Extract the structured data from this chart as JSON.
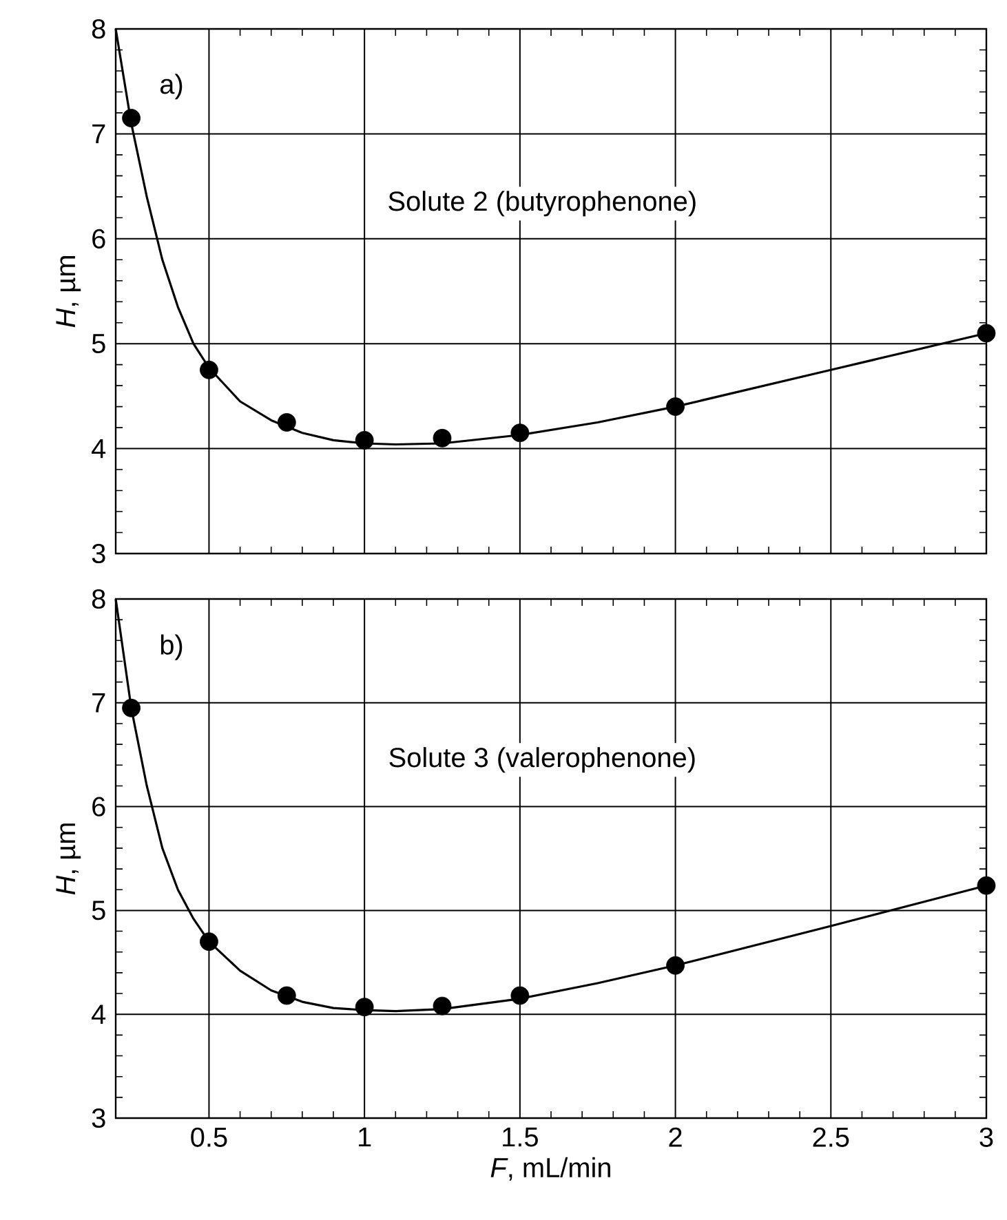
{
  "chart_data": [
    {
      "type": "scatter",
      "ylabel": "*H*, µm",
      "annotations": [
        "a)",
        "Solute 2 (butyrophenone)"
      ],
      "xlim": [
        0.2,
        3
      ],
      "xticks": [
        0.5,
        1,
        1.5,
        2,
        2.5,
        3
      ],
      "ylim": [
        3,
        8
      ],
      "yticks": [
        3,
        4,
        5,
        6,
        7,
        8
      ],
      "tick_labels": "y",
      "grid": true,
      "series": [
        {
          "color": "#000000",
          "marker": "circle",
          "x": [
            0.25,
            0.5,
            0.75,
            1,
            1.25,
            1.5,
            2,
            3
          ],
          "values": [
            7.15,
            4.75,
            4.25,
            4.08,
            4.1,
            4.15,
            4.4,
            5.1
          ]
        },
        {
          "type": "line",
          "color": "#000000",
          "marker": "none",
          "x": [
            0.2,
            0.25,
            0.3,
            0.35,
            0.4,
            0.45,
            0.5,
            0.6,
            0.7,
            0.8,
            0.9,
            1.0,
            1.1,
            1.25,
            1.5,
            1.75,
            2,
            2.5,
            3
          ],
          "values": [
            8.0,
            7.1,
            6.4,
            5.8,
            5.35,
            5.0,
            4.77,
            4.45,
            4.27,
            4.15,
            4.08,
            4.05,
            4.04,
            4.05,
            4.13,
            4.25,
            4.4,
            4.75,
            5.1
          ]
        }
      ]
    },
    {
      "type": "scatter",
      "xlabel": "*F*, mL/min",
      "ylabel": "*H*, µm",
      "annotations": [
        "b)",
        "Solute 3 (valerophenone)"
      ],
      "xlim": [
        0.2,
        3
      ],
      "xticks": [
        0.5,
        1,
        1.5,
        2,
        2.5,
        3
      ],
      "ylim": [
        3,
        8
      ],
      "yticks": [
        3,
        4,
        5,
        6,
        7,
        8
      ],
      "grid": true,
      "series": [
        {
          "color": "#000000",
          "marker": "circle",
          "x": [
            0.25,
            0.5,
            0.75,
            1,
            1.25,
            1.5,
            2,
            3
          ],
          "values": [
            6.95,
            4.7,
            4.18,
            4.07,
            4.08,
            4.18,
            4.47,
            5.24
          ]
        },
        {
          "type": "line",
          "color": "#000000",
          "marker": "none",
          "x": [
            0.2,
            0.25,
            0.3,
            0.35,
            0.4,
            0.45,
            0.5,
            0.6,
            0.7,
            0.8,
            0.9,
            1.0,
            1.1,
            1.25,
            1.5,
            1.75,
            2,
            2.5,
            3
          ],
          "values": [
            8.0,
            6.95,
            6.2,
            5.6,
            5.2,
            4.92,
            4.7,
            4.42,
            4.23,
            4.12,
            4.06,
            4.04,
            4.03,
            4.05,
            4.15,
            4.3,
            4.47,
            4.85,
            5.24
          ]
        }
      ]
    }
  ]
}
